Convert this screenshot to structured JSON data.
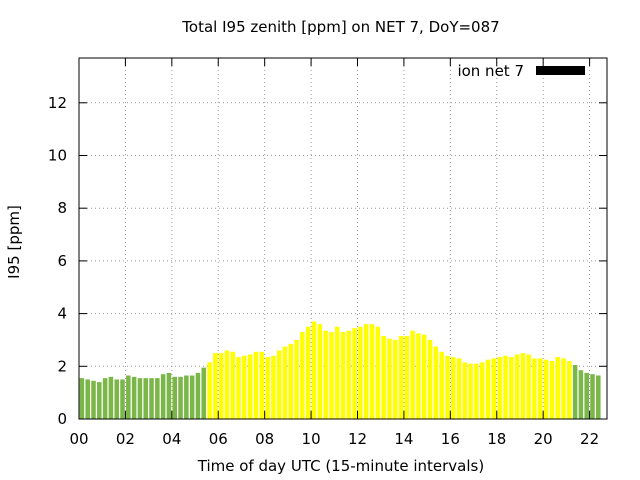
{
  "chart_data": {
    "type": "bar",
    "title": "Total I95 zenith [ppm] on NET 7, DoY=087",
    "xlabel": "Time of day UTC (15-minute intervals)",
    "ylabel": "I95 [ppm]",
    "legend": {
      "label": "ion net 7",
      "placement": "top-right",
      "swatch_color": "#000000"
    },
    "grid": true,
    "xlim": [
      0,
      22.75
    ],
    "ylim": [
      0,
      13.7
    ],
    "x_tick_labels": [
      "00",
      "02",
      "04",
      "06",
      "08",
      "10",
      "12",
      "14",
      "16",
      "18",
      "20",
      "22"
    ],
    "x_ticks": [
      0,
      2,
      4,
      6,
      8,
      10,
      12,
      14,
      16,
      18,
      20,
      22
    ],
    "y_ticks": [
      0,
      2,
      4,
      6,
      8,
      10,
      12
    ],
    "y_tick_labels": [
      "0",
      "2",
      "4",
      "6",
      "8",
      "10",
      "12"
    ],
    "colors": {
      "low": "#7ab648",
      "high": "#ffff00",
      "grid": "#999999"
    },
    "threshold_note_colors": "green bars for low values, yellow bars for high values",
    "interval_hours": 0.25,
    "series": [
      {
        "values": [
          1.55,
          1.5,
          1.45,
          1.4,
          1.55,
          1.6,
          1.5,
          1.5,
          1.65,
          1.6,
          1.55,
          1.55,
          1.55,
          1.55,
          1.7,
          1.75,
          1.6,
          1.6,
          1.65,
          1.65,
          1.75,
          1.95,
          2.15,
          2.5,
          2.5,
          2.6,
          2.55,
          2.35,
          2.4,
          2.45,
          2.55,
          2.55,
          2.35,
          2.4,
          2.6,
          2.75,
          2.85,
          3.0,
          3.3,
          3.5,
          3.7,
          3.6,
          3.35,
          3.3,
          3.5,
          3.3,
          3.35,
          3.45,
          3.5,
          3.6,
          3.6,
          3.5,
          3.15,
          3.05,
          3.0,
          3.15,
          3.15,
          3.35,
          3.25,
          3.2,
          3.0,
          2.75,
          2.55,
          2.4,
          2.35,
          2.3,
          2.15,
          2.1,
          2.1,
          2.15,
          2.25,
          2.3,
          2.35,
          2.4,
          2.35,
          2.45,
          2.5,
          2.45,
          2.3,
          2.3,
          2.25,
          2.2,
          2.35,
          2.3,
          2.2,
          2.05,
          1.85,
          1.75,
          1.7,
          1.65
        ],
        "categories": [
          "low",
          "low",
          "low",
          "low",
          "low",
          "low",
          "low",
          "low",
          "low",
          "low",
          "low",
          "low",
          "low",
          "low",
          "low",
          "low",
          "low",
          "low",
          "low",
          "low",
          "low",
          "low",
          "high",
          "high",
          "high",
          "high",
          "high",
          "high",
          "high",
          "high",
          "high",
          "high",
          "high",
          "high",
          "high",
          "high",
          "high",
          "high",
          "high",
          "high",
          "high",
          "high",
          "high",
          "high",
          "high",
          "high",
          "high",
          "high",
          "high",
          "high",
          "high",
          "high",
          "high",
          "high",
          "high",
          "high",
          "high",
          "high",
          "high",
          "high",
          "high",
          "high",
          "high",
          "high",
          "high",
          "high",
          "high",
          "high",
          "high",
          "high",
          "high",
          "high",
          "high",
          "high",
          "high",
          "high",
          "high",
          "high",
          "high",
          "high",
          "high",
          "high",
          "high",
          "high",
          "high",
          "low",
          "low",
          "low",
          "low",
          "low"
        ]
      }
    ]
  }
}
